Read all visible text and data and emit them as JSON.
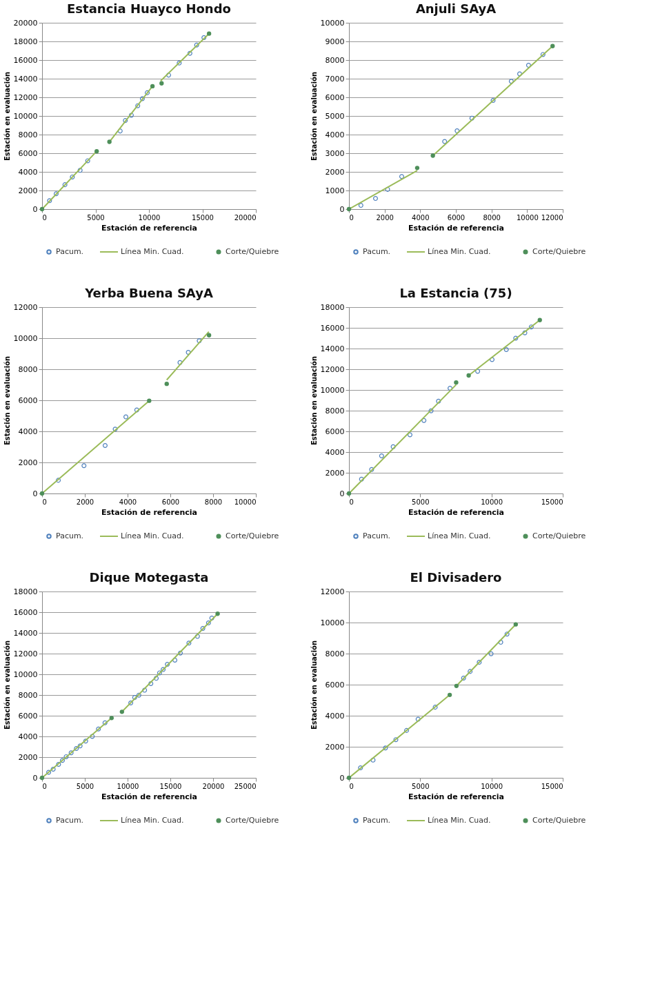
{
  "chart_data": [
    {
      "type": "scatter",
      "title": "Estancia Huayco Hondo",
      "xlabel": "Estación de referencia",
      "ylabel": "Estación en evaluación",
      "xlim": [
        0,
        20000
      ],
      "xticks": [
        0,
        5000,
        10000,
        15000,
        20000
      ],
      "ylim": [
        0,
        20000
      ],
      "yticks": [
        0,
        2000,
        4000,
        6000,
        8000,
        10000,
        12000,
        14000,
        16000,
        18000,
        20000
      ],
      "grid": "y",
      "legend": "bottom",
      "series": [
        {
          "name": "Pacum.",
          "type": "scatter",
          "marker": "circle",
          "color": "#4f81bd",
          "x": [
            700,
            1320,
            2140,
            2830,
            3560,
            4270,
            7310,
            7790,
            8350,
            8950,
            9380,
            9840,
            11840,
            12830,
            13830,
            14460,
            15140
          ],
          "values": [
            900,
            1650,
            2620,
            3450,
            4160,
            5190,
            8380,
            9510,
            10080,
            11100,
            11850,
            12490,
            14380,
            15680,
            16720,
            17610,
            18410
          ]
        },
        {
          "name": "Línea Min. Cuad.",
          "type": "line",
          "color": "#9bbb59",
          "x": [
            0,
            5110,
            5700,
            6300,
            10330,
            10700,
            11090,
            15620
          ],
          "values": [
            0,
            6210,
            null,
            7220,
            13190,
            null,
            13760,
            18840
          ]
        },
        {
          "name": "Corte/Quiebre",
          "type": "scatter",
          "marker": "circle",
          "color": "#4e8f5a",
          "x": [
            0,
            5110,
            6300,
            10330,
            11180,
            15620
          ],
          "values": [
            0,
            6210,
            7220,
            13190,
            13500,
            18840
          ]
        }
      ]
    },
    {
      "type": "scatter",
      "title": "Anjuli SAyA",
      "xlabel": "Estación de referencia",
      "ylabel": "Estación en evaluación",
      "xlim": [
        0,
        12000
      ],
      "xticks": [
        0,
        2000,
        4000,
        6000,
        8000,
        10000,
        12000
      ],
      "ylim": [
        0,
        10000
      ],
      "yticks": [
        0,
        1000,
        2000,
        3000,
        4000,
        5000,
        6000,
        7000,
        8000,
        9000,
        10000
      ],
      "grid": "y",
      "legend": "bottom",
      "series": [
        {
          "name": "Pacum.",
          "type": "scatter",
          "marker": "circle",
          "color": "#4f81bd",
          "x": [
            670,
            1490,
            2170,
            2960,
            5370,
            6070,
            6900,
            8090,
            9110,
            9580,
            10080,
            10890
          ],
          "values": [
            200,
            570,
            1060,
            1750,
            3630,
            4200,
            4880,
            5830,
            6860,
            7260,
            7720,
            8300
          ]
        },
        {
          "name": "Línea Min. Cuad.",
          "type": "line",
          "color": "#9bbb59",
          "x": [
            0,
            3830,
            4300,
            4710,
            11430
          ],
          "values": [
            0,
            2070,
            null,
            2870,
            8750
          ]
        },
        {
          "name": "Corte/Quiebre",
          "type": "scatter",
          "marker": "circle",
          "color": "#4e8f5a",
          "x": [
            0,
            3830,
            4710,
            11430
          ],
          "values": [
            0,
            2210,
            2870,
            8750
          ]
        }
      ]
    },
    {
      "type": "scatter",
      "title": "Yerba Buena SAyA",
      "xlabel": "Estación de referencia",
      "ylabel": "Estación en evaluación",
      "xlim": [
        0,
        10000
      ],
      "xticks": [
        0,
        2000,
        4000,
        6000,
        8000,
        10000
      ],
      "ylim": [
        0,
        12000
      ],
      "yticks": [
        0,
        2000,
        4000,
        6000,
        8000,
        10000,
        12000
      ],
      "grid": "y",
      "legend": "bottom",
      "series": [
        {
          "name": "Pacum.",
          "type": "scatter",
          "marker": "circle",
          "color": "#4f81bd",
          "x": [
            760,
            1960,
            2950,
            3420,
            3920,
            4430,
            6450,
            6840,
            7350
          ],
          "values": [
            850,
            1790,
            3090,
            4140,
            4930,
            5380,
            8430,
            9090,
            9830
          ]
        },
        {
          "name": "Línea Min. Cuad.",
          "type": "line",
          "color": "#9bbb59",
          "x": [
            0,
            5010,
            5400,
            5830,
            7800
          ],
          "values": [
            0,
            5970,
            null,
            7310,
            10420
          ]
        },
        {
          "name": "Corte/Quiebre",
          "type": "scatter",
          "marker": "circle",
          "color": "#4e8f5a",
          "x": [
            0,
            5010,
            5830,
            7810
          ],
          "values": [
            0,
            5970,
            7060,
            10190
          ]
        }
      ]
    },
    {
      "type": "scatter",
      "title": "La Estancia (75)",
      "xlabel": "Estación de referencia",
      "ylabel": "Estación en evaluación",
      "xlim": [
        0,
        15000
      ],
      "xticks": [
        0,
        5000,
        10000,
        15000
      ],
      "ylim": [
        0,
        18000
      ],
      "yticks": [
        0,
        2000,
        4000,
        6000,
        8000,
        10000,
        12000,
        14000,
        16000,
        18000
      ],
      "grid": "y",
      "legend": "bottom",
      "series": [
        {
          "name": "Pacum.",
          "type": "scatter",
          "marker": "circle",
          "color": "#4f81bd",
          "x": [
            880,
            1590,
            2290,
            3100,
            4280,
            5260,
            5760,
            6280,
            7090,
            9030,
            10040,
            11040,
            11700,
            12340,
            12790
          ],
          "values": [
            1380,
            2310,
            3630,
            4520,
            5670,
            7050,
            7980,
            8920,
            10170,
            11800,
            12930,
            13900,
            15000,
            15520,
            16090
          ]
        },
        {
          "name": "Línea Min. Cuad.",
          "type": "line",
          "color": "#9bbb59",
          "x": [
            0,
            7520,
            7950,
            8400,
            13390
          ],
          "values": [
            0,
            10510,
            null,
            11400,
            16750
          ]
        },
        {
          "name": "Corte/Quiebre",
          "type": "scatter",
          "marker": "circle",
          "color": "#4e8f5a",
          "x": [
            0,
            7520,
            8400,
            13390
          ],
          "values": [
            0,
            10720,
            11400,
            16750
          ]
        }
      ]
    },
    {
      "type": "scatter",
      "title": "Dique Motegasta",
      "xlabel": "Estación de referencia",
      "ylabel": "Estación en evaluación",
      "xlim": [
        0,
        25000
      ],
      "xticks": [
        0,
        5000,
        10000,
        15000,
        20000,
        25000
      ],
      "ylim": [
        0,
        18000
      ],
      "yticks": [
        0,
        2000,
        4000,
        6000,
        8000,
        10000,
        12000,
        14000,
        16000,
        18000
      ],
      "grid": "y",
      "legend": "bottom",
      "series": [
        {
          "name": "Pacum.",
          "type": "scatter",
          "marker": "circle",
          "color": "#4f81bd",
          "x": [
            770,
            1300,
            1930,
            2380,
            2820,
            3400,
            4010,
            4450,
            5100,
            5870,
            6590,
            7360,
            10370,
            10830,
            11320,
            11990,
            12720,
            13350,
            13740,
            14160,
            14650,
            15530,
            16170,
            17170,
            18170,
            18800,
            19460,
            19850
          ],
          "values": [
            530,
            830,
            1300,
            1680,
            2040,
            2420,
            2830,
            3080,
            3550,
            4000,
            4720,
            5310,
            7230,
            7760,
            7990,
            8460,
            9100,
            9610,
            10140,
            10460,
            10970,
            11370,
            12050,
            13010,
            13660,
            14430,
            14960,
            15430
          ]
        },
        {
          "name": "Línea Min. Cuad.",
          "type": "line",
          "color": "#9bbb59",
          "x": [
            0,
            8130,
            8700,
            9340,
            20530
          ],
          "values": [
            0,
            5780,
            null,
            6380,
            15850
          ]
        },
        {
          "name": "Corte/Quiebre",
          "type": "scatter",
          "marker": "circle",
          "color": "#4e8f5a",
          "x": [
            0,
            8130,
            9340,
            20530
          ],
          "values": [
            0,
            5780,
            6380,
            15850
          ]
        }
      ]
    },
    {
      "type": "scatter",
      "title": "El Divisadero",
      "xlabel": "Estación de referencia",
      "ylabel": "Estación en evaluación",
      "xlim": [
        0,
        15000
      ],
      "xticks": [
        0,
        5000,
        10000,
        15000
      ],
      "ylim": [
        0,
        12000
      ],
      "yticks": [
        0,
        2000,
        4000,
        6000,
        8000,
        10000,
        12000
      ],
      "grid": "y",
      "legend": "bottom",
      "series": [
        {
          "name": "Pacum.",
          "type": "scatter",
          "marker": "circle",
          "color": "#4f81bd",
          "x": [
            810,
            1690,
            2560,
            3290,
            4040,
            4850,
            6050,
            8040,
            8500,
            9140,
            9970,
            10650,
            11090
          ],
          "values": [
            640,
            1140,
            1920,
            2460,
            3050,
            3780,
            4550,
            6420,
            6850,
            7440,
            7990,
            8730,
            9260
          ]
        },
        {
          "name": "Línea Min. Cuad.",
          "type": "line",
          "color": "#9bbb59",
          "x": [
            0,
            7070,
            7300,
            7540,
            11700
          ],
          "values": [
            0,
            5340,
            null,
            5920,
            9880
          ]
        },
        {
          "name": "Corte/Quiebre",
          "type": "scatter",
          "marker": "circle",
          "color": "#4e8f5a",
          "x": [
            0,
            7070,
            7540,
            11700
          ],
          "values": [
            0,
            5340,
            5920,
            9880
          ]
        }
      ]
    }
  ]
}
